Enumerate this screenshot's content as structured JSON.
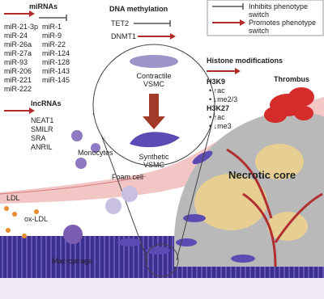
{
  "legend": {
    "items": [
      "Inhibits phenotype switch",
      "Promotes phenotype switch"
    ]
  },
  "mirnas": {
    "title": "miRNAs",
    "inhibit": [
      "miR-21-3p",
      "miR-24",
      "miR-26a",
      "miR-27a",
      "miR-93",
      "miR-206",
      "miR-221",
      "miR-222"
    ],
    "promote": [
      "miR-1",
      "miR-9",
      "miR-22",
      "miR-124",
      "miR-128",
      "miR-143",
      "miR-145"
    ]
  },
  "lncrnas": {
    "title": "lncRNAs",
    "items": [
      "NEAT1",
      "SMILR",
      "SRA",
      "ANRIL"
    ]
  },
  "dna_methylation": {
    "title": "DNA methylation",
    "inhibit": "TET2",
    "promote": "DNMT1"
  },
  "vsmc": {
    "contractile": "Contractile VSMC",
    "synthetic": "Synthetic VSMC"
  },
  "histone": {
    "title": "Histone modifications",
    "groups": [
      {
        "name": "H3K9",
        "items": [
          "• ↑ac",
          "• ↓me2/3"
        ]
      },
      {
        "name": "H3K27",
        "items": [
          "• ↑ac",
          "• ↓me3"
        ]
      }
    ]
  },
  "labels": {
    "thrombus": "Thrombus",
    "necrotic_core": "Necrotic core",
    "ldl": "LDL",
    "ox_ldl": "ox-LDL",
    "monocytes": "Monocytes",
    "foam_cell": "Foam cell",
    "macrophage": "Macrophage"
  }
}
